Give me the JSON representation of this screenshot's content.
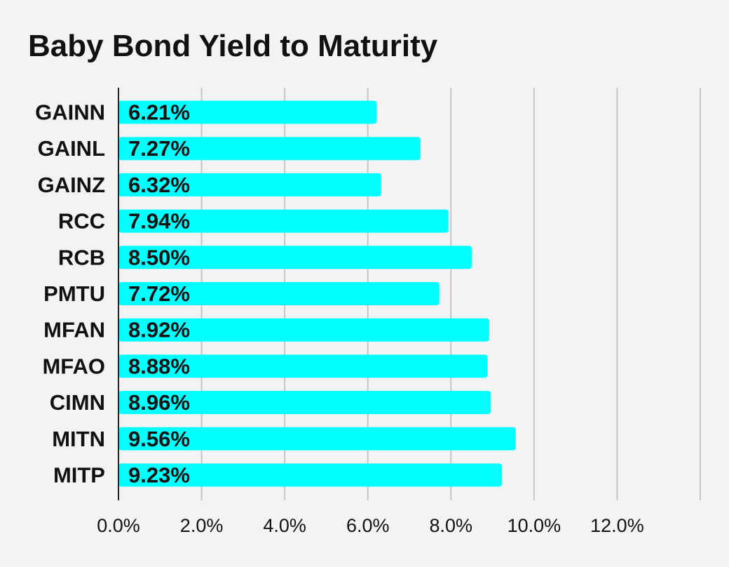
{
  "chart_data": {
    "type": "bar",
    "orientation": "horizontal",
    "title": "Baby Bond Yield to Maturity",
    "xlabel": "",
    "ylabel": "",
    "categories": [
      "GAINN",
      "GAINL",
      "GAINZ",
      "RCC",
      "RCB",
      "PMTU",
      "MFAN",
      "MFAO",
      "CIMN",
      "MITN",
      "MITP"
    ],
    "values": [
      6.21,
      7.27,
      6.32,
      7.94,
      8.5,
      7.72,
      8.92,
      8.88,
      8.96,
      9.56,
      9.23
    ],
    "value_labels": [
      "6.21%",
      "7.27%",
      "6.32%",
      "7.94%",
      "8.50%",
      "7.72%",
      "8.92%",
      "8.88%",
      "8.96%",
      "9.56%",
      "9.23%"
    ],
    "xlim": [
      0,
      14
    ],
    "x_ticks": [
      0,
      2,
      4,
      6,
      8,
      10,
      12
    ],
    "x_tick_labels": [
      "0.0%",
      "2.0%",
      "4.0%",
      "6.0%",
      "8.0%",
      "10.0%",
      "12.0%"
    ],
    "grid": "vertical",
    "legend": "none",
    "colors": {
      "bar": "#00ffff",
      "background": "#f3f3f3",
      "gridline": "#c6c6c6",
      "axis": "#222222",
      "text": "#111111"
    }
  }
}
